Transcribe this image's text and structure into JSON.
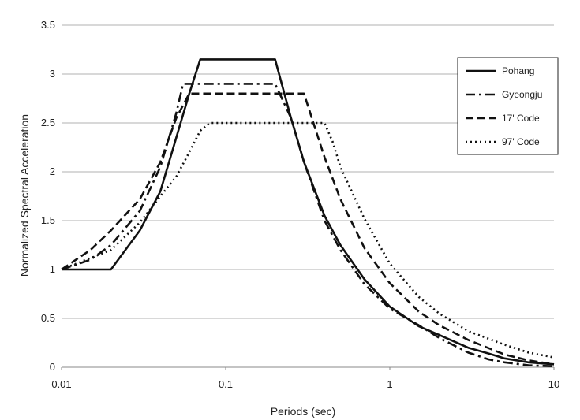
{
  "chart_data": {
    "type": "line",
    "xlabel": "Periods (sec)",
    "ylabel": "Normalized Spectral Acceleration",
    "xscale": "log",
    "xlim": [
      0.01,
      10
    ],
    "ylim": [
      0,
      3.5
    ],
    "xticks": [
      {
        "value": 0.01,
        "label": "0.01"
      },
      {
        "value": 0.1,
        "label": "0.1"
      },
      {
        "value": 1,
        "label": "1"
      },
      {
        "value": 10,
        "label": "10"
      }
    ],
    "yticks": [
      {
        "value": 0,
        "label": "0"
      },
      {
        "value": 0.5,
        "label": "0.5"
      },
      {
        "value": 1,
        "label": "1"
      },
      {
        "value": 1.5,
        "label": "1.5"
      },
      {
        "value": 2,
        "label": "2"
      },
      {
        "value": 2.5,
        "label": "2.5"
      },
      {
        "value": 3,
        "label": "3"
      },
      {
        "value": 3.5,
        "label": "3.5"
      }
    ],
    "grid": "horizontal",
    "legend_position": "top-right",
    "series": [
      {
        "name": "Pohang",
        "style": "solid",
        "color": "#111111",
        "x": [
          0.01,
          0.02,
          0.03,
          0.04,
          0.05,
          0.06,
          0.07,
          0.1,
          0.15,
          0.2,
          0.25,
          0.3,
          0.4,
          0.5,
          0.7,
          1,
          1.5,
          2,
          3,
          4,
          5,
          7,
          10
        ],
        "y": [
          1.0,
          1.0,
          1.4,
          1.8,
          2.35,
          2.8,
          3.15,
          3.15,
          3.15,
          3.15,
          2.55,
          2.1,
          1.55,
          1.25,
          0.9,
          0.62,
          0.42,
          0.33,
          0.2,
          0.14,
          0.09,
          0.05,
          0.03
        ]
      },
      {
        "name": "Gyeongju",
        "style": "dashdot",
        "color": "#111111",
        "x": [
          0.01,
          0.015,
          0.02,
          0.03,
          0.04,
          0.05,
          0.055,
          0.1,
          0.2,
          0.25,
          0.3,
          0.4,
          0.5,
          0.7,
          1,
          1.5,
          2,
          3,
          4,
          5,
          7,
          10
        ],
        "y": [
          1.0,
          1.1,
          1.25,
          1.6,
          2.05,
          2.6,
          2.9,
          2.9,
          2.9,
          2.55,
          2.1,
          1.5,
          1.2,
          0.85,
          0.6,
          0.43,
          0.3,
          0.15,
          0.08,
          0.05,
          0.02,
          0.01
        ]
      },
      {
        "name": "17' Code",
        "style": "dashed",
        "color": "#111111",
        "x": [
          0.01,
          0.015,
          0.02,
          0.03,
          0.04,
          0.05,
          0.06,
          0.1,
          0.2,
          0.3,
          0.35,
          0.4,
          0.5,
          0.7,
          1,
          1.5,
          2,
          3,
          5,
          7,
          10
        ],
        "y": [
          1.0,
          1.2,
          1.4,
          1.72,
          2.1,
          2.55,
          2.8,
          2.8,
          2.8,
          2.8,
          2.45,
          2.15,
          1.72,
          1.22,
          0.86,
          0.57,
          0.43,
          0.28,
          0.13,
          0.07,
          0.03
        ]
      },
      {
        "name": "97' Code",
        "style": "dotted",
        "color": "#111111",
        "x": [
          0.01,
          0.02,
          0.03,
          0.04,
          0.05,
          0.06,
          0.07,
          0.08,
          0.1,
          0.2,
          0.3,
          0.4,
          0.45,
          0.5,
          0.7,
          1,
          1.5,
          2,
          3,
          5,
          7,
          10
        ],
        "y": [
          1.0,
          1.2,
          1.48,
          1.75,
          1.95,
          2.2,
          2.42,
          2.5,
          2.5,
          2.5,
          2.5,
          2.5,
          2.3,
          2.05,
          1.52,
          1.06,
          0.72,
          0.55,
          0.37,
          0.23,
          0.15,
          0.1
        ]
      }
    ]
  }
}
